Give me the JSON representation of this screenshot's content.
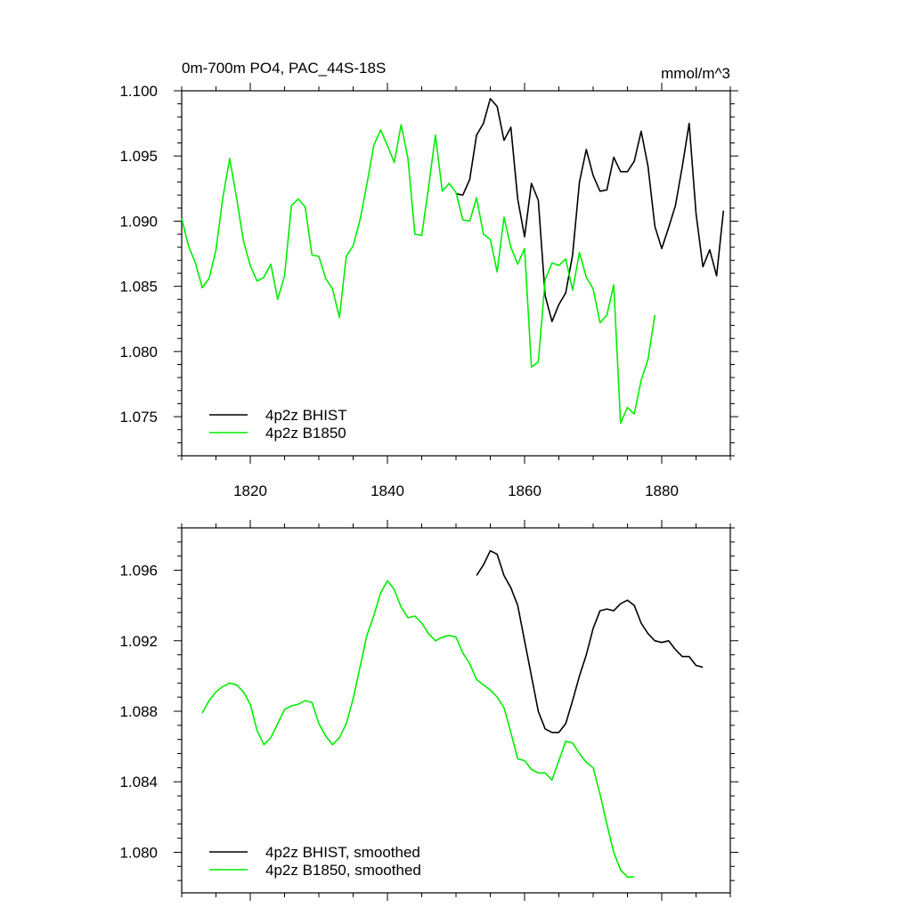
{
  "colors": {
    "bhist": "#000000",
    "b1850": "#00ee00"
  },
  "chart_data": [
    {
      "type": "line",
      "title": "0m-700m PO4, PAC_44S-18S",
      "units": "mmol/m^3",
      "xlim": [
        1810,
        1890
      ],
      "ylim": [
        1.072,
        1.1
      ],
      "xticks": [
        1820,
        1840,
        1860,
        1880
      ],
      "xtick_labels": [
        "1820",
        "1840",
        "1860",
        "1880"
      ],
      "yticks": [
        1.075,
        1.08,
        1.085,
        1.09,
        1.095,
        1.1
      ],
      "ytick_labels": [
        "1.075",
        "1.080",
        "1.085",
        "1.090",
        "1.095",
        "1.100"
      ],
      "legend": "bottom-left",
      "series": [
        {
          "name": "4p2z BHIST",
          "color": "#000000",
          "x": [
            1850,
            1851,
            1852,
            1853,
            1854,
            1855,
            1856,
            1857,
            1858,
            1859,
            1860,
            1861,
            1862,
            1863,
            1864,
            1865,
            1866,
            1867,
            1868,
            1869,
            1870,
            1871,
            1872,
            1873,
            1874,
            1875,
            1876,
            1877,
            1878,
            1879,
            1880,
            1881,
            1882,
            1883,
            1884,
            1885,
            1886,
            1887,
            1888,
            1889
          ],
          "y": [
            1.0921,
            1.092,
            1.0932,
            1.0966,
            1.0975,
            1.0994,
            1.0988,
            1.0962,
            1.0972,
            1.0917,
            1.0888,
            1.0929,
            1.0916,
            1.0843,
            1.0823,
            1.0836,
            1.0845,
            1.0874,
            1.093,
            1.0955,
            1.0935,
            1.0923,
            1.0924,
            1.0949,
            1.0938,
            1.0938,
            1.0946,
            1.0969,
            1.0942,
            1.0896,
            1.0879,
            1.0895,
            1.0912,
            1.0942,
            1.0975,
            1.0906,
            1.0865,
            1.0878,
            1.0858,
            1.0908
          ]
        },
        {
          "name": "4p2z B1850",
          "color": "#00ee00",
          "x": [
            1810,
            1811,
            1812,
            1813,
            1814,
            1815,
            1816,
            1817,
            1818,
            1819,
            1820,
            1821,
            1822,
            1823,
            1824,
            1825,
            1826,
            1827,
            1828,
            1829,
            1830,
            1831,
            1832,
            1833,
            1834,
            1835,
            1836,
            1837,
            1838,
            1839,
            1840,
            1841,
            1842,
            1843,
            1844,
            1845,
            1846,
            1847,
            1848,
            1849,
            1850,
            1851,
            1852,
            1853,
            1854,
            1855,
            1856,
            1857,
            1858,
            1859,
            1860,
            1861,
            1862,
            1863,
            1864,
            1865,
            1866,
            1867,
            1868,
            1869,
            1870,
            1871,
            1872,
            1873,
            1874,
            1875,
            1876,
            1877,
            1878,
            1879
          ],
          "y": [
            1.0902,
            1.0881,
            1.0868,
            1.0849,
            1.0856,
            1.0878,
            1.0918,
            1.0948,
            1.0918,
            1.0885,
            1.0866,
            1.0854,
            1.0857,
            1.0867,
            1.084,
            1.0858,
            1.0912,
            1.0917,
            1.0911,
            1.0874,
            1.0873,
            1.0856,
            1.0848,
            1.0826,
            1.0873,
            1.0881,
            1.0901,
            1.0928,
            1.0958,
            1.097,
            1.0958,
            1.0945,
            1.0974,
            1.0948,
            1.089,
            1.0889,
            1.0926,
            1.0966,
            1.0923,
            1.0929,
            1.0922,
            1.0901,
            1.09,
            1.0918,
            1.089,
            1.0886,
            1.0861,
            1.0903,
            1.088,
            1.0867,
            1.0879,
            1.0788,
            1.0792,
            1.0855,
            1.0868,
            1.0866,
            1.0871,
            1.0847,
            1.0876,
            1.0857,
            1.0848,
            1.0822,
            1.0828,
            1.0851,
            1.0745,
            1.0757,
            1.0752,
            1.0778,
            1.0794,
            1.0828
          ]
        }
      ]
    },
    {
      "type": "line",
      "xlim": [
        1810,
        1890
      ],
      "ylim": [
        1.0777,
        1.0984
      ],
      "xticks": [
        1820,
        1840,
        1860,
        1880
      ],
      "yticks": [
        1.08,
        1.084,
        1.088,
        1.092,
        1.096
      ],
      "ytick_labels": [
        "1.080",
        "1.084",
        "1.088",
        "1.092",
        "1.096"
      ],
      "legend": "bottom-left",
      "series": [
        {
          "name": "4p2z BHIST, smoothed",
          "color": "#000000",
          "x": [
            1853,
            1854,
            1855,
            1856,
            1857,
            1858,
            1859,
            1860,
            1861,
            1862,
            1863,
            1864,
            1865,
            1866,
            1867,
            1868,
            1869,
            1870,
            1871,
            1872,
            1873,
            1874,
            1875,
            1876,
            1877,
            1878,
            1879,
            1880,
            1881,
            1882,
            1883,
            1884,
            1885,
            1886
          ],
          "y": [
            1.0957,
            1.0963,
            1.0971,
            1.0969,
            1.0957,
            1.095,
            1.094,
            1.092,
            1.09,
            1.088,
            1.087,
            1.0868,
            1.0868,
            1.0873,
            1.0886,
            1.09,
            1.0912,
            1.0927,
            1.0937,
            1.0938,
            1.0937,
            1.0941,
            1.0943,
            1.094,
            1.093,
            1.0924,
            1.092,
            1.0919,
            1.092,
            1.0915,
            1.0911,
            1.0911,
            1.0906,
            1.0905
          ]
        },
        {
          "name": "4p2z B1850, smoothed",
          "color": "#00ee00",
          "x": [
            1813,
            1814,
            1815,
            1816,
            1817,
            1818,
            1819,
            1820,
            1821,
            1822,
            1823,
            1824,
            1825,
            1826,
            1827,
            1828,
            1829,
            1830,
            1831,
            1832,
            1833,
            1834,
            1835,
            1836,
            1837,
            1838,
            1839,
            1840,
            1841,
            1842,
            1843,
            1844,
            1845,
            1846,
            1847,
            1848,
            1849,
            1850,
            1851,
            1852,
            1853,
            1854,
            1855,
            1856,
            1857,
            1858,
            1859,
            1860,
            1861,
            1862,
            1863,
            1864,
            1865,
            1866,
            1867,
            1868,
            1869,
            1870,
            1871,
            1872,
            1873,
            1874,
            1875,
            1876
          ],
          "y": [
            1.0879,
            1.0886,
            1.0891,
            1.0894,
            1.0896,
            1.0895,
            1.0891,
            1.0884,
            1.0869,
            1.0861,
            1.0865,
            1.0873,
            1.0881,
            1.0883,
            1.0884,
            1.0886,
            1.0885,
            1.0873,
            1.0866,
            1.0861,
            1.0865,
            1.0873,
            1.0887,
            1.0905,
            1.0923,
            1.0934,
            1.0947,
            1.0954,
            1.0949,
            1.0939,
            1.0933,
            1.0934,
            1.093,
            1.0924,
            1.092,
            1.0922,
            1.0923,
            1.0922,
            1.0913,
            1.0907,
            1.0898,
            1.0895,
            1.0892,
            1.0888,
            1.0882,
            1.0868,
            1.0853,
            1.0852,
            1.0847,
            1.0845,
            1.0845,
            1.0841,
            1.0852,
            1.0863,
            1.0862,
            1.0856,
            1.0851,
            1.0848,
            1.0833,
            1.0816,
            1.08,
            1.079,
            1.0786,
            1.0786
          ]
        }
      ]
    }
  ]
}
